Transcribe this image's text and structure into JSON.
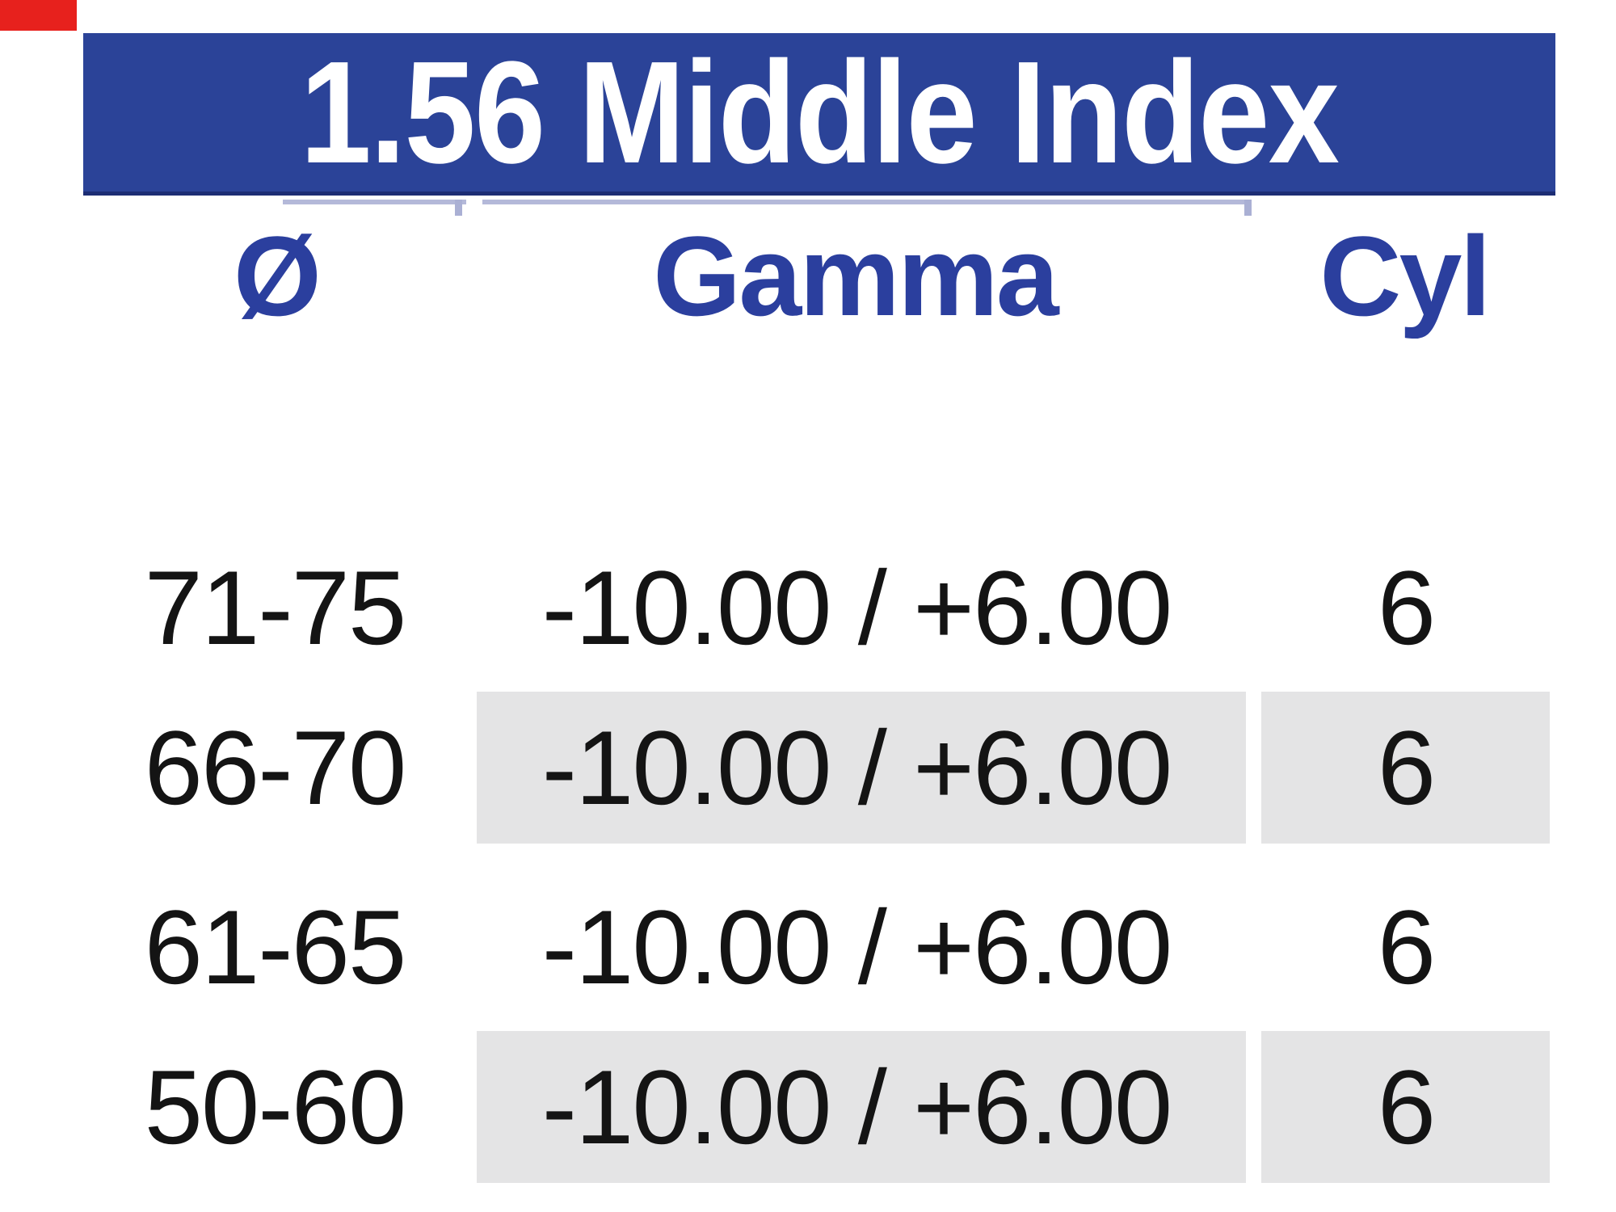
{
  "header": {
    "title": "1.56 Middle Index",
    "bar_color": "#2b4398",
    "bar_border_color": "#1d2d74",
    "title_text_color": "#ffffff"
  },
  "marker": {
    "description": "red rectangle artifact in top-left corner",
    "color": "#e7211d"
  },
  "columns": [
    {
      "key": "diameter",
      "label": "Ø"
    },
    {
      "key": "gamma",
      "label": "Gamma"
    },
    {
      "key": "cyl",
      "label": "Cyl"
    }
  ],
  "rows": [
    {
      "diameter": "71-75",
      "gamma": "-10.00 / +6.00",
      "cyl": "6",
      "shaded": false
    },
    {
      "diameter": "66-70",
      "gamma": "-10.00 / +6.00",
      "cyl": "6",
      "shaded": true
    },
    {
      "diameter": "61-65",
      "gamma": "-10.00 / +6.00",
      "cyl": "6",
      "shaded": false
    },
    {
      "diameter": "50-60",
      "gamma": "-10.00 / +6.00",
      "cyl": "6",
      "shaded": true
    }
  ],
  "colors": {
    "header_text_blue": "#2b3f9e",
    "shaded_cell_gray": "#e4e4e5",
    "data_text": "#141414",
    "rule_lavender": "#b4b9d9",
    "page_background": "#ffffff"
  }
}
